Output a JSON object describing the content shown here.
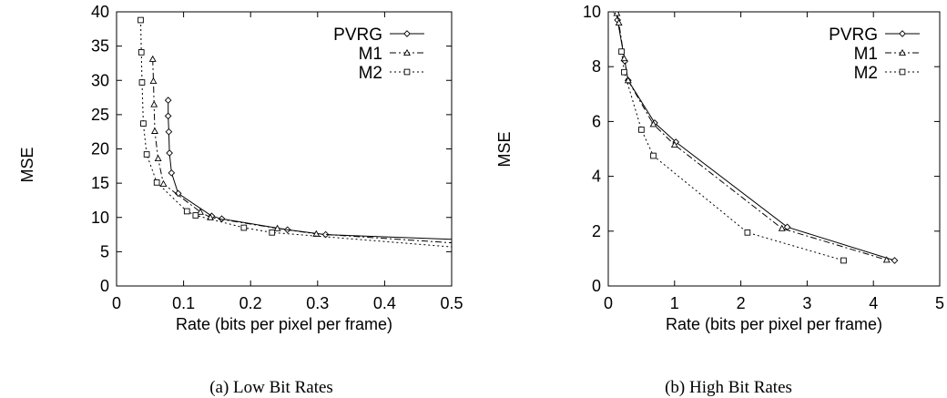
{
  "chart_data": [
    {
      "type": "line",
      "caption": "(a) Low Bit Rates",
      "xlabel": "Rate (bits per pixel per frame)",
      "ylabel": "MSE",
      "xlim": [
        0,
        0.5
      ],
      "ylim": [
        0,
        40
      ],
      "xticks": [
        0,
        0.1,
        0.2,
        0.3,
        0.4,
        0.5
      ],
      "yticks": [
        0,
        5,
        10,
        15,
        20,
        25,
        30,
        35,
        40
      ],
      "legend_position": "top-right",
      "grid": false,
      "series": [
        {
          "name": "PVRG",
          "marker": "diamond",
          "dash": "solid",
          "color": "#000000",
          "points": [
            [
              0.077,
              27.1
            ],
            [
              0.077,
              24.8
            ],
            [
              0.078,
              22.5
            ],
            [
              0.079,
              19.4
            ],
            [
              0.082,
              16.5
            ],
            [
              0.092,
              13.5
            ],
            [
              0.142,
              10.2
            ],
            [
              0.157,
              9.8
            ],
            [
              0.255,
              8.2
            ],
            [
              0.312,
              7.5
            ],
            [
              0.5,
              6.8
            ]
          ]
        },
        {
          "name": "M1",
          "marker": "triangle",
          "dash": "dashdot",
          "color": "#000000",
          "points": [
            [
              0.054,
              33.1
            ],
            [
              0.055,
              29.9
            ],
            [
              0.056,
              26.5
            ],
            [
              0.057,
              22.6
            ],
            [
              0.062,
              18.6
            ],
            [
              0.07,
              14.9
            ],
            [
              0.125,
              10.8
            ],
            [
              0.14,
              10.0
            ],
            [
              0.24,
              8.4
            ],
            [
              0.298,
              7.6
            ],
            [
              0.5,
              6.3
            ]
          ]
        },
        {
          "name": "M2",
          "marker": "square",
          "dash": "dotted",
          "color": "#000000",
          "points": [
            [
              0.036,
              38.8
            ],
            [
              0.037,
              34.1
            ],
            [
              0.038,
              29.7
            ],
            [
              0.04,
              23.7
            ],
            [
              0.045,
              19.2
            ],
            [
              0.06,
              15.1
            ],
            [
              0.105,
              10.9
            ],
            [
              0.118,
              10.3
            ],
            [
              0.19,
              8.5
            ],
            [
              0.232,
              7.8
            ],
            [
              0.5,
              5.7
            ]
          ]
        }
      ]
    },
    {
      "type": "line",
      "caption": "(b) High Bit Rates",
      "xlabel": "Rate (bits per pixel per frame)",
      "ylabel": "MSE",
      "xlim": [
        0,
        5
      ],
      "ylim": [
        0,
        10
      ],
      "xticks": [
        0,
        1,
        2,
        3,
        4,
        5
      ],
      "yticks": [
        0,
        2,
        4,
        6,
        8,
        10
      ],
      "legend_position": "top-right",
      "grid": false,
      "series": [
        {
          "name": "PVRG",
          "marker": "diamond",
          "dash": "solid",
          "color": "#000000",
          "points": [
            [
              0.12,
              10.0
            ],
            [
              0.14,
              9.7
            ],
            [
              0.25,
              8.2
            ],
            [
              0.3,
              7.5
            ],
            [
              0.7,
              5.95
            ],
            [
              1.02,
              5.25
            ],
            [
              2.7,
              2.15
            ],
            [
              4.32,
              0.93
            ]
          ]
        },
        {
          "name": "M1",
          "marker": "triangle",
          "dash": "dashdot",
          "color": "#000000",
          "points": [
            [
              0.13,
              9.95
            ],
            [
              0.16,
              9.6
            ],
            [
              0.24,
              8.3
            ],
            [
              0.3,
              7.5
            ],
            [
              0.68,
              5.9
            ],
            [
              1.0,
              5.15
            ],
            [
              2.62,
              2.1
            ],
            [
              4.2,
              0.95
            ]
          ]
        },
        {
          "name": "M2",
          "marker": "square",
          "dash": "dotted",
          "color": "#000000",
          "points": [
            [
              0.2,
              8.55
            ],
            [
              0.24,
              7.8
            ],
            [
              0.5,
              5.7
            ],
            [
              0.68,
              4.75
            ],
            [
              2.1,
              1.95
            ],
            [
              3.55,
              0.93
            ]
          ]
        }
      ]
    }
  ]
}
